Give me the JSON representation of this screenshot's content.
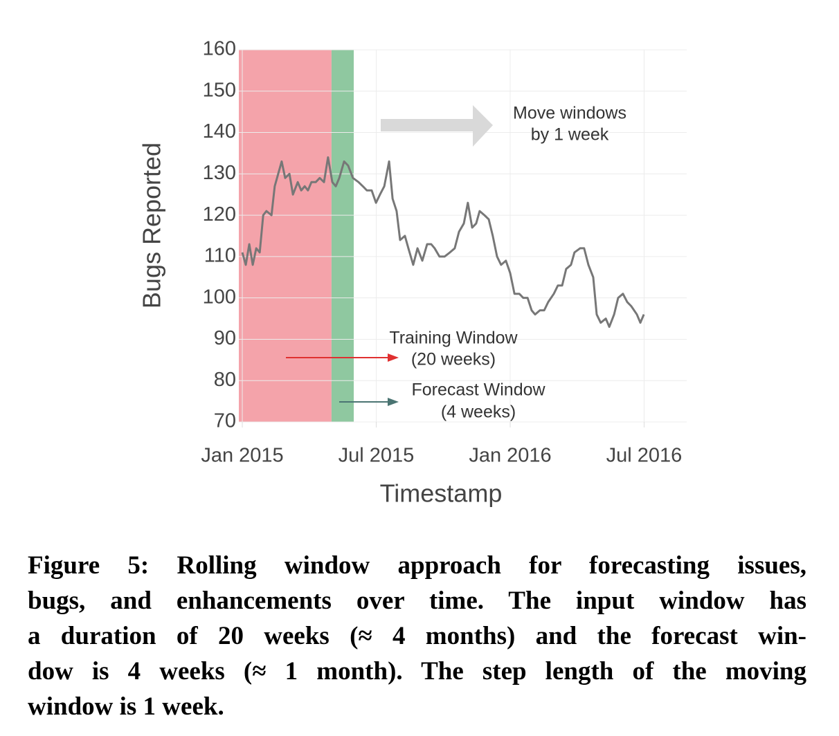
{
  "chart_data": {
    "type": "line",
    "x_label": "Timestamp",
    "y_label": "Bugs Reported",
    "color": "#777777",
    "grid": true,
    "xlim": [
      2014.987,
      2016.659
    ],
    "ylim": [
      70,
      160
    ],
    "xticks": [
      {
        "value": 2015,
        "label": "Jan 2015"
      },
      {
        "value": 2015.5,
        "label": "Jul 2015"
      },
      {
        "value": 2016,
        "label": "Jan 2016"
      },
      {
        "value": 2016.5,
        "label": "Jul 2016"
      }
    ],
    "yticks": [
      70,
      80,
      90,
      100,
      110,
      120,
      130,
      140,
      150,
      160
    ],
    "spans": [
      {
        "x": [
          2014.987,
          2015.333
        ],
        "color": "#f4a3aa"
      },
      {
        "x": [
          2015.333,
          2015.416
        ],
        "color": "#8fc8a0"
      }
    ],
    "x": [
      2015.0,
      2015.013,
      2015.026,
      2015.039,
      2015.052,
      2015.065,
      2015.078,
      2015.09,
      2015.109,
      2015.121,
      2015.134,
      2015.147,
      2015.16,
      2015.176,
      2015.189,
      2015.207,
      2015.22,
      2015.233,
      2015.245,
      2015.258,
      2015.274,
      2015.289,
      2015.305,
      2015.32,
      2015.336,
      2015.349,
      2015.362,
      2015.38,
      2015.395,
      2015.413,
      2015.434,
      2015.45,
      2015.465,
      2015.483,
      2015.499,
      2015.514,
      2015.53,
      2015.548,
      2015.561,
      2015.576,
      2015.589,
      2015.607,
      2015.62,
      2015.638,
      2015.654,
      2015.672,
      2015.69,
      2015.705,
      2015.718,
      2015.736,
      2015.755,
      2015.775,
      2015.793,
      2015.809,
      2015.827,
      2015.842,
      2015.858,
      2015.873,
      2015.886,
      2015.904,
      2015.92,
      2015.935,
      2015.951,
      2015.966,
      2015.984,
      2016.0,
      2016.016,
      2016.034,
      2016.049,
      2016.065,
      2016.08,
      2016.093,
      2016.111,
      2016.127,
      2016.142,
      2016.163,
      2016.178,
      2016.194,
      2016.209,
      2016.227,
      2016.24,
      2016.261,
      2016.276,
      2016.292,
      2016.31,
      2016.323,
      2016.338,
      2016.357,
      2016.37,
      2016.388,
      2016.403,
      2016.421,
      2016.437,
      2016.452,
      2016.473,
      2016.486,
      2016.499
    ],
    "values": [
      111,
      108,
      113,
      108,
      112,
      111,
      120,
      121,
      120,
      127,
      130,
      133,
      129,
      130,
      125,
      128,
      126,
      127,
      126,
      128,
      128,
      129,
      128,
      134,
      128,
      127,
      129,
      133,
      132,
      129,
      128,
      127,
      126,
      126,
      123,
      125,
      127,
      133,
      124,
      121,
      114,
      115,
      112,
      108,
      112,
      109,
      113,
      113,
      112,
      110,
      110,
      111,
      112,
      116,
      118,
      123,
      117,
      118,
      121,
      120,
      119,
      115,
      110,
      108,
      109,
      106,
      101,
      101,
      100,
      100,
      97,
      96,
      97,
      97,
      99,
      101,
      103,
      103,
      107,
      108,
      111,
      112,
      112,
      108,
      105,
      96,
      94,
      95,
      93,
      96,
      100,
      101,
      99,
      98,
      96,
      94,
      96
    ],
    "annotations": {
      "move": [
        "Move windows",
        "by 1 week"
      ],
      "training": [
        "Training Window",
        "(20 weeks)"
      ],
      "forecast": [
        "Forecast Window",
        "(4 weeks)"
      ]
    }
  },
  "caption": [
    "Figure 5: Rolling window approach for forecasting issues,",
    "bugs, and enhancements over time. The input window has",
    "a duration of 20 weeks (≈ 4 months) and the forecast win-",
    "dow is 4 weeks (≈ 1 month). The step length of the moving",
    "window is 1 week."
  ]
}
